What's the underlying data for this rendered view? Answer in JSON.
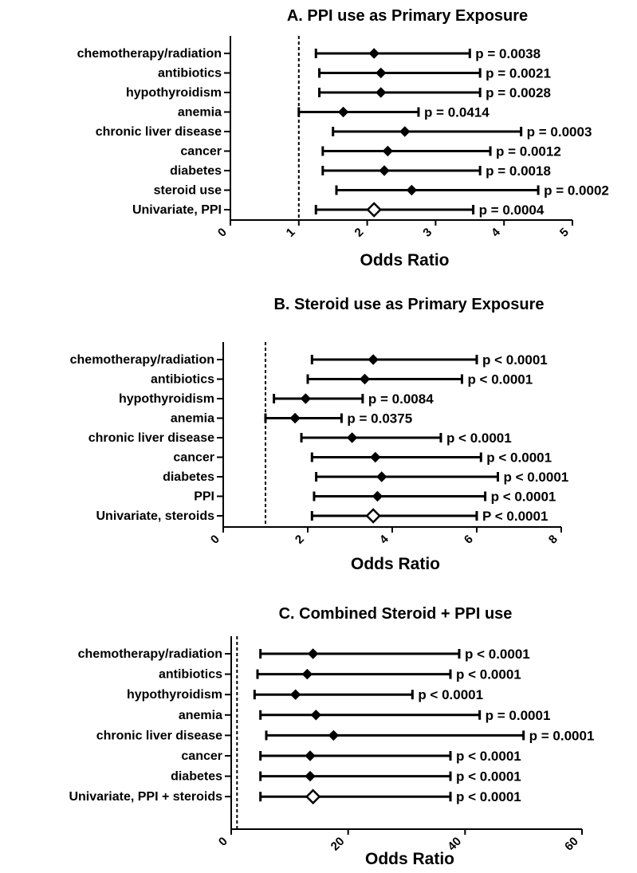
{
  "chart_data": [
    {
      "type": "forest",
      "title": "A.  PPI use as Primary Exposure",
      "xlabel": "Odds Ratio",
      "xlim": [
        0,
        5
      ],
      "ticks": [
        0,
        1,
        2,
        3,
        4,
        5
      ],
      "reference_line": 1,
      "rows": [
        {
          "label": "chemotherapy/radiation",
          "or": 2.1,
          "lo": 1.25,
          "hi": 3.5,
          "p": "p = 0.0038",
          "marker": "filled"
        },
        {
          "label": "antibiotics",
          "or": 2.2,
          "lo": 1.3,
          "hi": 3.65,
          "p": "p = 0.0021",
          "marker": "filled"
        },
        {
          "label": "hypothyroidism",
          "or": 2.2,
          "lo": 1.3,
          "hi": 3.65,
          "p": "p = 0.0028",
          "marker": "filled"
        },
        {
          "label": "anemia",
          "or": 1.65,
          "lo": 1.0,
          "hi": 2.75,
          "p": "p = 0.0414",
          "marker": "filled"
        },
        {
          "label": "chronic liver disease",
          "or": 2.55,
          "lo": 1.5,
          "hi": 4.25,
          "p": "p = 0.0003",
          "marker": "filled"
        },
        {
          "label": "cancer",
          "or": 2.3,
          "lo": 1.35,
          "hi": 3.8,
          "p": "p = 0.0012",
          "marker": "filled"
        },
        {
          "label": "diabetes",
          "or": 2.25,
          "lo": 1.35,
          "hi": 3.65,
          "p": "p = 0.0018",
          "marker": "filled"
        },
        {
          "label": "steroid use",
          "or": 2.65,
          "lo": 1.55,
          "hi": 4.5,
          "p": "p = 0.0002",
          "marker": "filled"
        },
        {
          "label": "Univariate, PPI",
          "or": 2.1,
          "lo": 1.25,
          "hi": 3.55,
          "p": "p = 0.0004",
          "marker": "open"
        }
      ]
    },
    {
      "type": "forest",
      "title": "B.  Steroid use as Primary Exposure",
      "xlabel": "Odds Ratio",
      "xlim": [
        0,
        8
      ],
      "ticks": [
        0,
        2,
        4,
        6,
        8
      ],
      "reference_line": 1,
      "rows": [
        {
          "label": "chemotherapy/radiation",
          "or": 3.55,
          "lo": 2.1,
          "hi": 6.0,
          "p": "p < 0.0001",
          "marker": "filled"
        },
        {
          "label": "antibiotics",
          "or": 3.35,
          "lo": 2.0,
          "hi": 5.65,
          "p": "p < 0.0001",
          "marker": "filled"
        },
        {
          "label": "hypothyroidism",
          "or": 1.95,
          "lo": 1.2,
          "hi": 3.3,
          "p": "p = 0.0084",
          "marker": "filled"
        },
        {
          "label": "anemia",
          "or": 1.7,
          "lo": 1.0,
          "hi": 2.8,
          "p": "p = 0.0375",
          "marker": "filled"
        },
        {
          "label": "chronic liver disease",
          "or": 3.05,
          "lo": 1.85,
          "hi": 5.15,
          "p": "p < 0.0001",
          "marker": "filled"
        },
        {
          "label": "cancer",
          "or": 3.6,
          "lo": 2.1,
          "hi": 6.1,
          "p": "p < 0.0001",
          "marker": "filled"
        },
        {
          "label": "diabetes",
          "or": 3.75,
          "lo": 2.2,
          "hi": 6.5,
          "p": "p < 0.0001",
          "marker": "filled"
        },
        {
          "label": "PPI",
          "or": 3.65,
          "lo": 2.15,
          "hi": 6.2,
          "p": "p < 0.0001",
          "marker": "filled"
        },
        {
          "label": "Univariate, steroids",
          "or": 3.55,
          "lo": 2.1,
          "hi": 6.0,
          "p": "P < 0.0001",
          "marker": "open"
        }
      ]
    },
    {
      "type": "forest",
      "title": "C.  Combined Steroid + PPI use",
      "xlabel": "Odds Ratio",
      "xlim": [
        0,
        60
      ],
      "ticks": [
        0,
        20,
        40,
        60
      ],
      "reference_line": 1,
      "rows": [
        {
          "label": "chemotherapy/radiation",
          "or": 14,
          "lo": 5,
          "hi": 39,
          "p": "p < 0.0001",
          "marker": "filled"
        },
        {
          "label": "antibiotics",
          "or": 13,
          "lo": 4.5,
          "hi": 37.5,
          "p": "p < 0.0001",
          "marker": "filled"
        },
        {
          "label": "hypothyroidism",
          "or": 11,
          "lo": 4,
          "hi": 31,
          "p": "p < 0.0001",
          "marker": "filled"
        },
        {
          "label": "anemia",
          "or": 14.5,
          "lo": 5,
          "hi": 42.5,
          "p": "p = 0.0001",
          "marker": "filled"
        },
        {
          "label": "chronic liver disease",
          "or": 17.5,
          "lo": 6,
          "hi": 50,
          "p": "p = 0.0001",
          "marker": "filled"
        },
        {
          "label": "cancer",
          "or": 13.5,
          "lo": 5,
          "hi": 37.5,
          "p": "p < 0.0001",
          "marker": "filled"
        },
        {
          "label": "diabetes",
          "or": 13.5,
          "lo": 5,
          "hi": 37.5,
          "p": "p < 0.0001",
          "marker": "filled"
        },
        {
          "label": "Univariate, PPI + steroids",
          "or": 14,
          "lo": 5,
          "hi": 37.5,
          "p": "p < 0.0001",
          "marker": "open"
        }
      ]
    }
  ]
}
